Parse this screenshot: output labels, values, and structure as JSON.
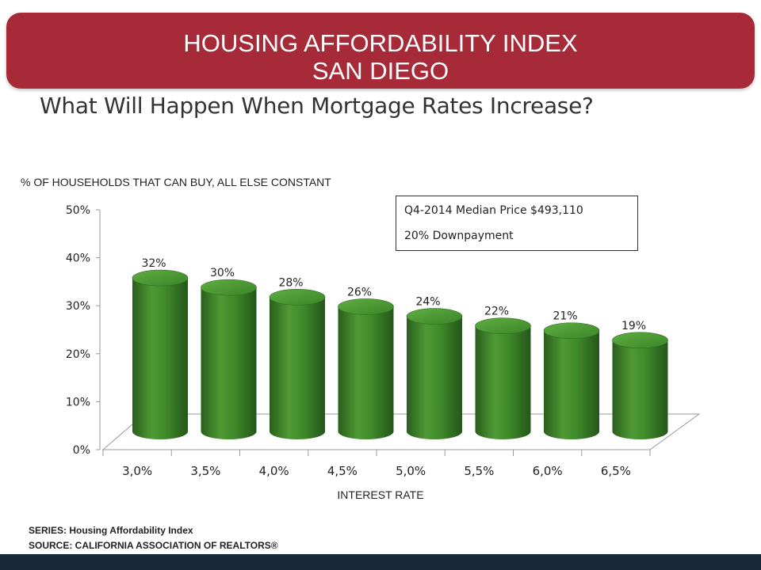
{
  "header": {
    "title_line1": "HOUSING AFFORDABILITY INDEX",
    "title_line2": "SAN DIEGO"
  },
  "subtitle": "What Will Happen When Mortgage Rates Increase?",
  "note": {
    "line1": "Q4-2014 Median Price $493,110",
    "line2": "20% Downpayment"
  },
  "footer": {
    "series": "SERIES: Housing Affordability Index",
    "source": "SOURCE: CALIFORNIA ASSOCIATION OF REALTORS®"
  },
  "colors": {
    "banner": "#a62a38",
    "bar_dark": "#2d6a1f",
    "bar_light": "#56a43a",
    "bottom_bar": "#17293a"
  },
  "chart_data": {
    "type": "bar",
    "style": "3d-cylinder",
    "ylabel": "% OF HOUSEHOLDS THAT CAN BUY, ALL ELSE CONSTANT",
    "xlabel": "INTEREST RATE",
    "categories": [
      "3,0%",
      "3,5%",
      "4,0%",
      "4,5%",
      "5,0%",
      "5,5%",
      "6,0%",
      "6,5%"
    ],
    "values": [
      32,
      30,
      28,
      26,
      24,
      22,
      21,
      19
    ],
    "value_labels": [
      "32%",
      "30%",
      "28%",
      "26%",
      "24%",
      "22%",
      "21%",
      "19%"
    ],
    "yticks": [
      "0%",
      "10%",
      "20%",
      "30%",
      "40%",
      "50%"
    ],
    "ylim": [
      0,
      50
    ],
    "grid": false,
    "legend": "none"
  }
}
